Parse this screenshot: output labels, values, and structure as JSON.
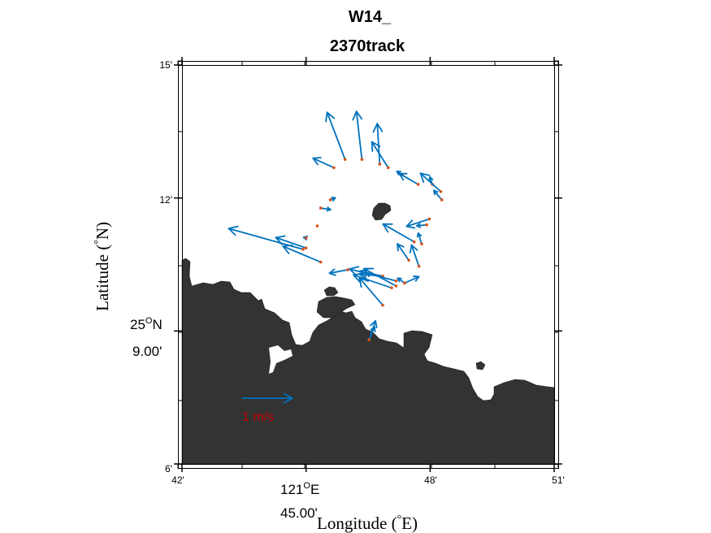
{
  "chart_data": {
    "type": "quiver-map",
    "title_line1": "W14_",
    "title_line2": "2370track",
    "xlabel": "Longitude (°E)",
    "ylabel": "Latitude (°N)",
    "xlim": [
      121.7,
      121.85
    ],
    "ylim": [
      25.1,
      25.25
    ],
    "x_ticks": [
      {
        "value": 121.7,
        "label": "42'"
      },
      {
        "value": 121.75,
        "label": "121°E 45.00'"
      },
      {
        "value": 121.8,
        "label": "48'"
      },
      {
        "value": 121.85,
        "label": "51'"
      }
    ],
    "y_ticks": [
      {
        "value": 25.1,
        "label": "6'"
      },
      {
        "value": 25.15,
        "label": "25°N 9.00'"
      },
      {
        "value": 25.2,
        "label": "12'"
      },
      {
        "value": 25.25,
        "label": "15'"
      }
    ],
    "x_tick_labels": {
      "t42": "42'",
      "t121": "121",
      "tE": "E",
      "t4500": "45.00'",
      "t48": "48'",
      "t51": "51'"
    },
    "y_tick_labels": {
      "t6": "6'",
      "t25": "25",
      "tN": "N",
      "t900": "9.00'",
      "t12": "12'",
      "t15": "15'"
    },
    "degree_symbol": "O",
    "axis_label_parts": {
      "x_pre": "Longitude (",
      "x_unit": "E)",
      "y_pre": "Latitude (",
      "y_unit": "N)",
      "deg": "°"
    },
    "scale_arrow": {
      "label": "1 m/s",
      "value_ms": 1,
      "lon": 121.7245,
      "lat": 25.1247
    },
    "vector_color": "#0072BD",
    "point_color": "#D95319",
    "land_color": "#333333",
    "vectors": [
      {
        "lon": 121.7612,
        "lat": 25.2114,
        "u": -0.42,
        "v": 0.19
      },
      {
        "lon": 121.7657,
        "lat": 25.2145,
        "u": -0.36,
        "v": 0.95
      },
      {
        "lon": 121.7725,
        "lat": 25.2145,
        "u": -0.11,
        "v": 0.97
      },
      {
        "lon": 121.7797,
        "lat": 25.2127,
        "u": -0.05,
        "v": 0.82
      },
      {
        "lon": 121.7831,
        "lat": 25.2114,
        "u": -0.33,
        "v": 0.52
      },
      {
        "lon": 121.7888,
        "lat": 25.2087,
        "u": -0.11,
        "v": 0.07
      },
      {
        "lon": 121.7952,
        "lat": 25.2051,
        "u": -0.38,
        "v": 0.22
      },
      {
        "lon": 121.8009,
        "lat": 25.2051,
        "u": -0.05,
        "v": 0.15
      },
      {
        "lon": 121.8043,
        "lat": 25.2024,
        "u": -0.41,
        "v": 0.37
      },
      {
        "lon": 121.8047,
        "lat": 25.1993,
        "u": -0.16,
        "v": 0.19
      },
      {
        "lon": 121.7598,
        "lat": 25.1993,
        "u": 0.1,
        "v": 0.04
      },
      {
        "lon": 121.7559,
        "lat": 25.1962,
        "u": 0.2,
        "v": -0.03
      },
      {
        "lon": 121.7545,
        "lat": 25.1895,
        "u": 0,
        "v": 0
      },
      {
        "lon": 121.7997,
        "lat": 25.1921,
        "u": -0.46,
        "v": -0.15
      },
      {
        "lon": 121.7986,
        "lat": 25.1899,
        "u": -0.2,
        "v": -0.02
      },
      {
        "lon": 121.7936,
        "lat": 25.1835,
        "u": -0.63,
        "v": 0.36
      },
      {
        "lon": 121.7966,
        "lat": 25.1827,
        "u": -0.07,
        "v": 0.22
      },
      {
        "lon": 121.7914,
        "lat": 25.1766,
        "u": -0.23,
        "v": 0.33
      },
      {
        "lon": 121.7955,
        "lat": 25.1743,
        "u": -0.15,
        "v": 0.43
      },
      {
        "lon": 121.75,
        "lat": 25.185,
        "u": -0.05,
        "v": 0.01
      },
      {
        "lon": 121.7488,
        "lat": 25.1807,
        "u": -1.5,
        "v": 0.42
      },
      {
        "lon": 121.75,
        "lat": 25.1812,
        "u": -0.61,
        "v": 0.21
      },
      {
        "lon": 121.7559,
        "lat": 25.1759,
        "u": -0.76,
        "v": 0.32
      },
      {
        "lon": 121.7668,
        "lat": 25.173,
        "u": -0.37,
        "v": -0.07
      },
      {
        "lon": 121.7809,
        "lat": 25.1706,
        "u": -0.46,
        "v": 0.1
      },
      {
        "lon": 121.7809,
        "lat": 25.1706,
        "u": -0.47,
        "v": 0.04
      },
      {
        "lon": 121.7863,
        "lat": 25.1688,
        "u": -0.94,
        "v": 0.24
      },
      {
        "lon": 121.7863,
        "lat": 25.1669,
        "u": -0.65,
        "v": 0.35
      },
      {
        "lon": 121.7845,
        "lat": 25.1662,
        "u": -0.77,
        "v": 0.26
      },
      {
        "lon": 121.7897,
        "lat": 25.168,
        "u": -0.14,
        "v": 0.1
      },
      {
        "lon": 121.7809,
        "lat": 25.1597,
        "u": -0.47,
        "v": 0.55
      },
      {
        "lon": 121.7897,
        "lat": 25.168,
        "u": 0.29,
        "v": 0.13
      },
      {
        "lon": 121.7754,
        "lat": 25.1467,
        "u": 0.13,
        "v": 0.38
      },
      {
        "lon": 121.7754,
        "lat": 25.1467,
        "u": 0.11,
        "v": 0.26
      }
    ]
  }
}
